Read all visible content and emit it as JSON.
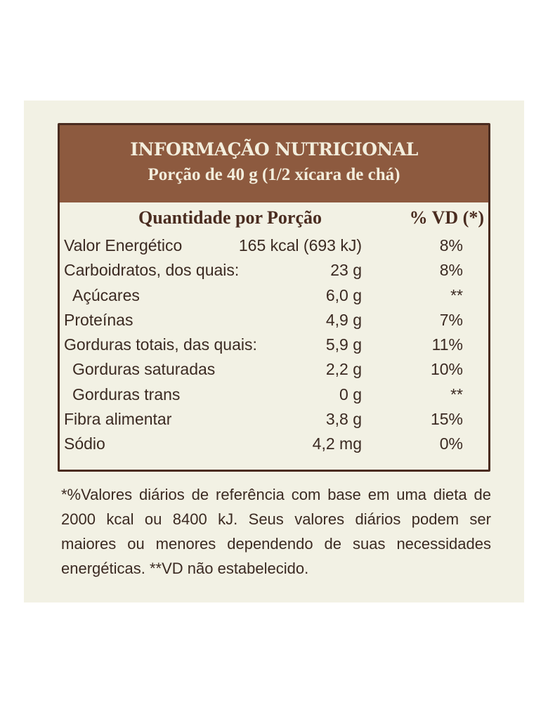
{
  "label": {
    "title": "INFORMAÇÃO NUTRICIONAL",
    "serving": "Porção de 40 g (1/2 xícara de chá)",
    "col_amount": "Quantidade por Porção",
    "col_dv": "% VD (*)",
    "rows": [
      {
        "name": "Valor Energético",
        "amount": "165 kcal (693 kJ)",
        "dv": "8%",
        "indent": false
      },
      {
        "name": "Carboidratos, dos quais:",
        "amount": "23 g",
        "dv": "8%",
        "indent": false
      },
      {
        "name": "Açúcares",
        "amount": "6,0 g",
        "dv": "**",
        "indent": true
      },
      {
        "name": "Proteínas",
        "amount": "4,9 g",
        "dv": "7%",
        "indent": false
      },
      {
        "name": "Gorduras totais, das quais:",
        "amount": "5,9 g",
        "dv": "11%",
        "indent": false
      },
      {
        "name": "Gorduras saturadas",
        "amount": "2,2 g",
        "dv": "10%",
        "indent": true
      },
      {
        "name": "Gorduras trans",
        "amount": "0 g",
        "dv": "**",
        "indent": true
      },
      {
        "name": "Fibra alimentar",
        "amount": "3,8 g",
        "dv": "15%",
        "indent": false
      },
      {
        "name": "Sódio",
        "amount": "4,2 mg",
        "dv": "0%",
        "indent": false
      }
    ],
    "footnote": "*%Valores diários de referência com base em uma dieta de 2000 kcal ou 8400 kJ. Seus valores diários podem ser maiores ou menores dependendo de suas necessidades energéticas. **VD não estabelecido."
  },
  "colors": {
    "header": "#8d5a3f",
    "panel": "#f2f1e4",
    "border": "#4a2c20"
  }
}
